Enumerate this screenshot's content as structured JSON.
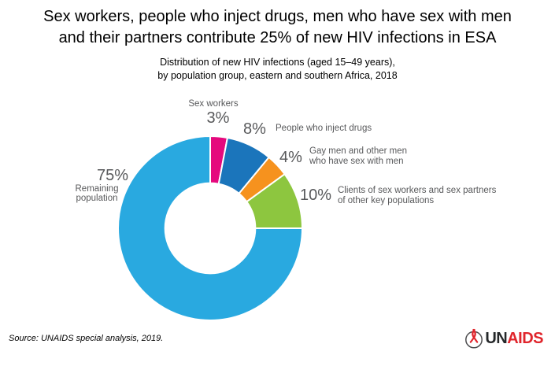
{
  "title": {
    "lines": [
      "Sex workers, people who inject drugs, men who have sex with men",
      "and their partners contribute 25% of new HIV infections in ESA"
    ]
  },
  "subtitle": {
    "lines": [
      "Distribution of new HIV infections (aged 15–49 years),",
      "by population group, eastern and southern Africa, 2018"
    ]
  },
  "chart_data": {
    "type": "pie",
    "donut": true,
    "inner_radius_ratio": 0.49,
    "start": "12 o'clock, clockwise",
    "title": "Distribution of new HIV infections (aged 15–49 years), by population group, eastern and southern Africa, 2018",
    "units": "%",
    "segments": [
      {
        "label": "Sex workers",
        "value": 3,
        "color": "#E5097D"
      },
      {
        "label": "People who inject drugs",
        "value": 8,
        "color": "#1B75BB"
      },
      {
        "label": "Gay men and other men who have sex with men",
        "value": 4,
        "color": "#F6921E"
      },
      {
        "label": "Clients of sex workers and sex partners of other key populations",
        "value": 10,
        "color": "#8DC63F"
      },
      {
        "label": "Remaining population",
        "value": 75,
        "color": "#29A9E0"
      }
    ],
    "separator_color": "#ffffff"
  },
  "labels": {
    "sex_workers": {
      "pct": "3%",
      "text": "Sex workers"
    },
    "inject_drugs": {
      "pct": "8%",
      "text": "People who inject drugs"
    },
    "msm": {
      "pct": "4%",
      "line1": "Gay men and other men",
      "line2": "who have sex with men"
    },
    "clients": {
      "pct": "10%",
      "line1": "Clients of sex workers and sex partners",
      "line2": "of other key populations"
    },
    "remaining": {
      "pct": "75%",
      "line1": "Remaining",
      "line2": "population"
    }
  },
  "footer": {
    "source": "Source: UNAIDS special analysis, 2019.",
    "logo_un": "UN",
    "logo_aids": "AIDS",
    "logo_red": "#E0252C",
    "logo_dark": "#25282A"
  }
}
